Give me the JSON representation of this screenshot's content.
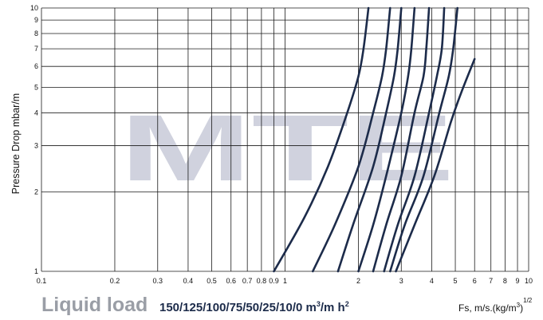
{
  "chart_data": {
    "type": "line",
    "xscale": "log",
    "yscale": "log",
    "xlim": [
      0.1,
      10
    ],
    "ylim": [
      1,
      10
    ],
    "grid": true,
    "x_ticks": [
      "0.1",
      "0.2",
      "0.3",
      "0.4",
      "0.5",
      "0.6",
      "0.7",
      "0.8",
      "0.9",
      "1",
      "2",
      "3",
      "4",
      "5",
      "6",
      "7",
      "8",
      "9",
      "10"
    ],
    "y_ticks": [
      "1",
      "2",
      "3",
      "4",
      "5",
      "6",
      "7",
      "8",
      "9",
      "10"
    ],
    "ylabel": "Pressure Drop mbar/m",
    "xlabel": {
      "main": "Fs, m/s.(kg/m",
      "sup": "3",
      "tail": ")",
      "exp": "1/2"
    },
    "legend": {
      "title": "Liquid load",
      "values_text": "150/125/100/75/50/25/10/0 m",
      "values_sup": "3",
      "values_unit": "/m h",
      "values_unit_sup": "2"
    },
    "watermark": "MTE",
    "series": [
      {
        "liquid_load": 150,
        "points": [
          [
            0.9,
            1.0
          ],
          [
            1.2,
            1.6
          ],
          [
            1.5,
            2.5
          ],
          [
            1.8,
            4.0
          ],
          [
            2.0,
            5.5
          ],
          [
            2.1,
            7.0
          ],
          [
            2.2,
            10.0
          ]
        ]
      },
      {
        "liquid_load": 125,
        "points": [
          [
            1.3,
            1.0
          ],
          [
            1.6,
            1.5
          ],
          [
            2.0,
            2.5
          ],
          [
            2.3,
            4.0
          ],
          [
            2.5,
            5.5
          ],
          [
            2.6,
            7.0
          ],
          [
            2.7,
            10.0
          ]
        ]
      },
      {
        "liquid_load": 100,
        "points": [
          [
            1.65,
            1.0
          ],
          [
            1.9,
            1.5
          ],
          [
            2.3,
            2.5
          ],
          [
            2.6,
            4.0
          ],
          [
            2.8,
            5.5
          ],
          [
            2.9,
            7.0
          ],
          [
            3.0,
            10.0
          ]
        ]
      },
      {
        "liquid_load": 75,
        "points": [
          [
            2.0,
            1.0
          ],
          [
            2.3,
            1.5
          ],
          [
            2.6,
            2.3
          ],
          [
            3.0,
            4.0
          ],
          [
            3.2,
            5.5
          ],
          [
            3.3,
            7.0
          ],
          [
            3.4,
            10.0
          ]
        ]
      },
      {
        "liquid_load": 50,
        "points": [
          [
            2.3,
            1.0
          ],
          [
            2.6,
            1.5
          ],
          [
            3.0,
            2.3
          ],
          [
            3.4,
            4.0
          ],
          [
            3.7,
            5.5
          ],
          [
            3.8,
            7.0
          ],
          [
            3.9,
            10.0
          ]
        ]
      },
      {
        "liquid_load": 25,
        "points": [
          [
            2.55,
            1.0
          ],
          [
            2.9,
            1.5
          ],
          [
            3.4,
            2.3
          ],
          [
            3.9,
            4.0
          ],
          [
            4.2,
            5.5
          ],
          [
            4.4,
            7.0
          ],
          [
            4.5,
            10.0
          ]
        ]
      },
      {
        "liquid_load": 10,
        "points": [
          [
            2.7,
            1.0
          ],
          [
            3.1,
            1.5
          ],
          [
            3.7,
            2.3
          ],
          [
            4.3,
            4.0
          ],
          [
            4.7,
            5.5
          ],
          [
            4.9,
            7.0
          ],
          [
            5.1,
            10.0
          ]
        ]
      },
      {
        "liquid_load": 0,
        "points": [
          [
            2.85,
            1.0
          ],
          [
            3.4,
            1.5
          ],
          [
            4.1,
            2.3
          ],
          [
            4.8,
            3.7
          ],
          [
            5.3,
            4.8
          ],
          [
            6.0,
            6.4
          ]
        ]
      }
    ]
  }
}
